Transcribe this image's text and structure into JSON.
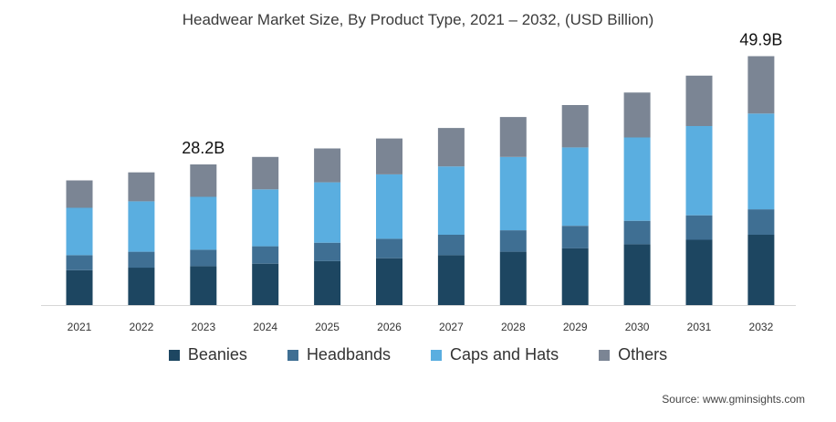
{
  "chart_data": {
    "type": "bar",
    "stacked": true,
    "title": "Headwear Market Size, By Product Type, 2021 – 2032, (USD Billion)",
    "categories": [
      "2021",
      "2022",
      "2023",
      "2024",
      "2025",
      "2026",
      "2027",
      "2028",
      "2029",
      "2030",
      "2031",
      "2032"
    ],
    "series": [
      {
        "name": "Beanies",
        "color": "#1d4661",
        "values": [
          7.0,
          7.5,
          7.8,
          8.3,
          8.8,
          9.4,
          10.0,
          10.7,
          11.4,
          12.2,
          13.1,
          14.1
        ]
      },
      {
        "name": "Headbands",
        "color": "#3f6f93",
        "values": [
          3.0,
          3.2,
          3.3,
          3.5,
          3.7,
          3.9,
          4.1,
          4.3,
          4.5,
          4.7,
          4.9,
          5.1
        ]
      },
      {
        "name": "Caps and Hats",
        "color": "#5aaee0",
        "values": [
          9.5,
          10.1,
          10.6,
          11.4,
          12.1,
          12.9,
          13.7,
          14.7,
          15.7,
          16.7,
          17.9,
          19.2
        ]
      },
      {
        "name": "Others",
        "color": "#7b8594",
        "values": [
          5.5,
          5.8,
          6.5,
          6.5,
          6.8,
          7.2,
          7.7,
          8.0,
          8.5,
          9.0,
          10.1,
          11.5
        ]
      }
    ],
    "ylim": [
      0,
      52
    ],
    "xlabel": "",
    "ylabel": "",
    "grid": false,
    "legend": "bottom",
    "annotations": [
      {
        "category": "2023",
        "text": "28.2B"
      },
      {
        "category": "2032",
        "text": "49.9B"
      }
    ]
  },
  "source": "Source: www.gminsights.com"
}
